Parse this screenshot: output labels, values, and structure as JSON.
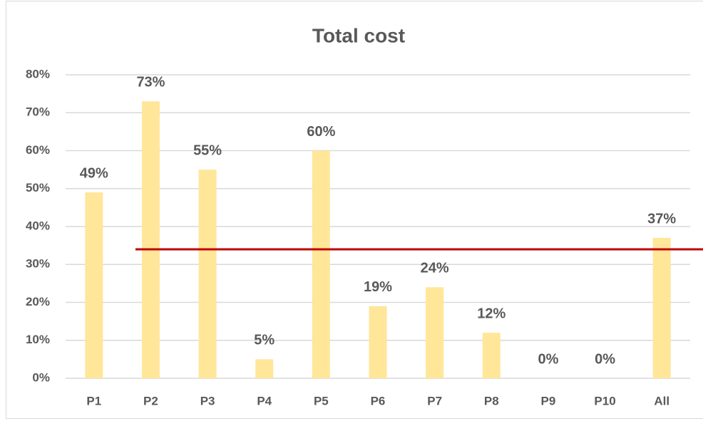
{
  "chart_data": {
    "type": "bar",
    "title": "Total cost",
    "categories": [
      "P1",
      "P2",
      "P3",
      "P4",
      "P5",
      "P6",
      "P7",
      "P8",
      "P9",
      "P10",
      "All"
    ],
    "values": [
      49,
      73,
      55,
      5,
      60,
      19,
      24,
      12,
      0,
      0,
      37
    ],
    "value_labels": [
      "49%",
      "73%",
      "55%",
      "5%",
      "60%",
      "19%",
      "24%",
      "12%",
      "0%",
      "0%",
      "37%"
    ],
    "color": "#ffe699",
    "ylim": [
      0,
      80
    ],
    "yticks": [
      {
        "value": 0,
        "label": "0%"
      },
      {
        "value": 10,
        "label": "10%"
      },
      {
        "value": 20,
        "label": "20%"
      },
      {
        "value": 30,
        "label": "30%"
      },
      {
        "value": 40,
        "label": "40%"
      },
      {
        "value": 50,
        "label": "50%"
      },
      {
        "value": 60,
        "label": "60%"
      },
      {
        "value": 70,
        "label": "70%"
      },
      {
        "value": 80,
        "label": "80%"
      }
    ],
    "grid": true,
    "reference_line": {
      "value": 34,
      "color": "#c00000"
    }
  }
}
